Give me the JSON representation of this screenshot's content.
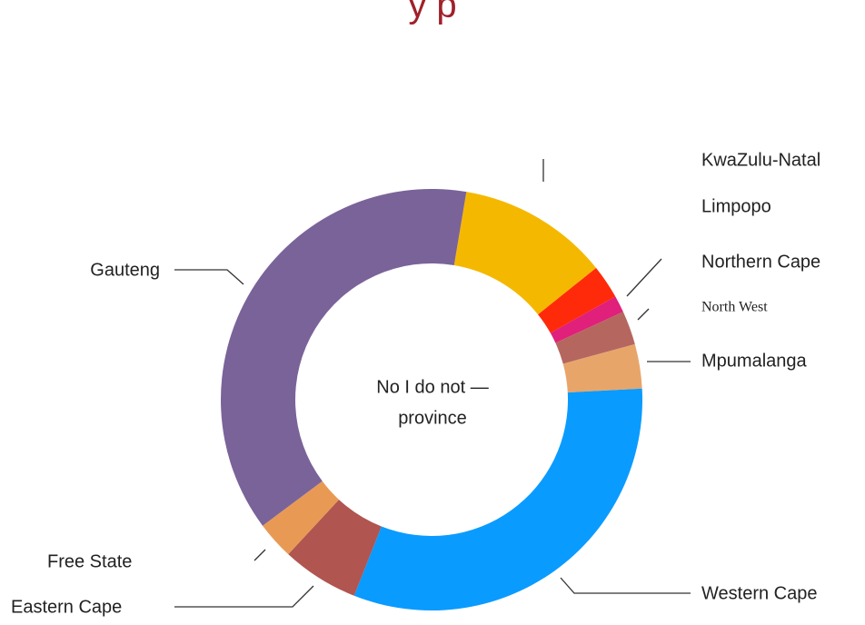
{
  "chart_data": {
    "type": "donut",
    "title": "y p",
    "categories": [
      "KwaZulu-Natal",
      "Limpopo",
      "Northern Cape",
      "North West",
      "Mpumalanga",
      "Western Cape",
      "Eastern Cape",
      "Free State",
      "Gauteng"
    ],
    "values": [
      11.6,
      2.6,
      1.3,
      2.6,
      3.4,
      31.8,
      5.9,
      2.9,
      37.8
    ],
    "colors": [
      "#f5b800",
      "#ff2a0a",
      "#e0207a",
      "#b5675f",
      "#e8a56a",
      "#0a9bff",
      "#b05550",
      "#e89a55",
      "#7a6399"
    ],
    "center_text": [
      "No I do not —",
      "province"
    ]
  }
}
